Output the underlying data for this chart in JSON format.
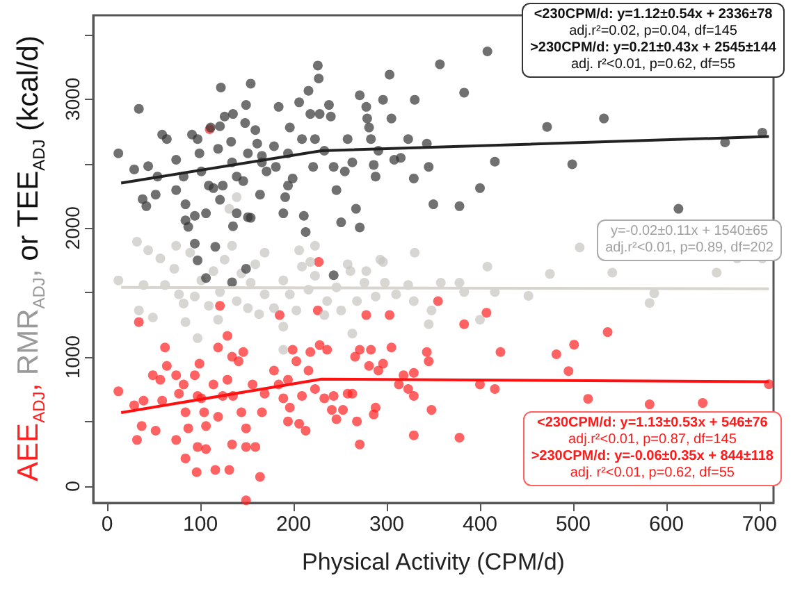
{
  "chart_data": {
    "type": "scatter",
    "xlabel": "Physical Activity (CPM/d)",
    "ylabel": "AEE$_{ADJ}$, RMR$_{ADJ}$, or TEE$_{ADJ}$ (kcal/d)",
    "xlim": [
      -15,
      715
    ],
    "xticks": [
      0,
      100,
      200,
      300,
      400,
      500,
      600,
      700
    ],
    "ylim": [
      -130,
      3650
    ],
    "yticks": [
      0,
      {
        "value": 500,
        "label": null
      },
      1000,
      {
        "value": 1500,
        "label": null
      },
      2000,
      {
        "value": 2500,
        "label": null
      },
      3000,
      {
        "value": 3500,
        "label": null
      }
    ],
    "grid": false,
    "series": [
      {
        "marker": "circle",
        "color": "#ff2020",
        "x": [
          12,
          29,
          34,
          39,
          37,
          32,
          49,
          52,
          57,
          59,
          62,
          64,
          74,
          77,
          82,
          84,
          74,
          84,
          87,
          94,
          97,
          99,
          101,
          97,
          96,
          106,
          104,
          106,
          114,
          116,
          119,
          119,
          121,
          124,
          129,
          129,
          131,
          134,
          135,
          134,
          141,
          146,
          144,
          149,
          149,
          149,
          159,
          156,
          164,
          166,
          169,
          179,
          184,
          189,
          194,
          194,
          196,
          185,
          199,
          203,
          206,
          209,
          213,
          216,
          218,
          223,
          226,
          227,
          228,
          236,
          233,
          241,
          243,
          246,
          253,
          258,
          263,
          266,
          271,
          271,
          268,
          278,
          281,
          283,
          286,
          288,
          291,
          296,
          303,
          305,
          313,
          318,
          323,
          329,
          329,
          329,
          343,
          345,
          348,
          355,
          378,
          383,
          400,
          407,
          416,
          422,
          110,
          482,
          495,
          501,
          516,
          537,
          582,
          639,
          710
        ],
        "values": [
          735,
          627,
          1272,
          663,
          466,
          358,
          860,
          430,
          825,
          663,
          1075,
          932,
          860,
          717,
          788,
          573,
          358,
          215,
          448,
          860,
          699,
          949,
          681,
          304,
          108,
          287,
          573,
          466,
          788,
          126,
          538,
          1075,
          1398,
          699,
          825,
          1165,
          126,
          1003,
          699,
          323,
          968,
          1040,
          573,
          448,
          304,
          -110,
          304,
          788,
          72,
          573,
          717,
          896,
          788,
          681,
          825,
          502,
          609,
          1326,
          1057,
          968,
          484,
          699,
          430,
          896,
          1040,
          753,
          1362,
          1738,
          1093,
          1057,
          681,
          591,
          699,
          519,
          591,
          717,
          717,
          1003,
          1057,
          323,
          502,
          1326,
          932,
          1057,
          556,
          609,
          896,
          949,
          1326,
          1075,
          788,
          860,
          753,
          878,
          699,
          394,
          1040,
          968,
          591,
          1434,
          376,
          1255,
          788,
          1344,
          753,
          1040,
          2767,
          1022,
          892,
          1097,
          677,
          1194,
          634,
          645,
          790
        ]
      },
      {
        "marker": "circle",
        "color": "#c8c4c0",
        "x": [
          12,
          32,
          39,
          34,
          49,
          44,
          57,
          62,
          74,
          72,
          77,
          82,
          84,
          97,
          94,
          101,
          109,
          114,
          119,
          121,
          126,
          134,
          139,
          144,
          151,
          154,
          159,
          163,
          169,
          179,
          189,
          189,
          189,
          196,
          203,
          209,
          218,
          216,
          223,
          233,
          236,
          246,
          251,
          261,
          263,
          268,
          276,
          278,
          288,
          296,
          298,
          310,
          323,
          329,
          330,
          345,
          348,
          358,
          378,
          383,
          400,
          408,
          416,
          89,
          139,
          131,
          169,
          206,
          223,
          258,
          293,
          452,
          475,
          507,
          542,
          582,
          587,
          654,
          676,
          703
        ],
        "values": [
          1595,
          1895,
          1559,
          1362,
          1308,
          1828,
          1765,
          1559,
          1863,
          1685,
          1487,
          1416,
          1272,
          1147,
          1470,
          1595,
          1398,
          1667,
          1290,
          1505,
          1756,
          1863,
          1434,
          1649,
          1380,
          1577,
          1720,
          1333,
          1487,
          1380,
          1595,
          1237,
          1057,
          1487,
          1362,
          1702,
          1738,
          1523,
          1631,
          1326,
          1434,
          1541,
          1362,
          1667,
          1183,
          1434,
          1577,
          1667,
          1470,
          1738,
          1577,
          1487,
          1559,
          1434,
          1810,
          1255,
          1362,
          1577,
          1577,
          1505,
          1290,
          1702,
          1505,
          1810,
          2240,
          2150,
          1810,
          1828,
          1863,
          1720,
          1756,
          1475,
          1645,
          1850,
          1655,
          1420,
          1495,
          1655,
          1765,
          1765
        ]
      },
      {
        "marker": "circle",
        "color": "#333333",
        "x": [
          12,
          34,
          29,
          44,
          38,
          42,
          52,
          59,
          64,
          54,
          74,
          74,
          82,
          84,
          84,
          87,
          94,
          91,
          97,
          99,
          101,
          106,
          94,
          109,
          111,
          119,
          121,
          122,
          126,
          133,
          134,
          124,
          114,
          121,
          139,
          135,
          148,
          149,
          154,
          159,
          151,
          146,
          139,
          135,
          151,
          154,
          161,
          166,
          171,
          164,
          166,
          179,
          184,
          181,
          194,
          196,
          199,
          194,
          191,
          189,
          206,
          209,
          211,
          213,
          216,
          218,
          223,
          221,
          226,
          227,
          228,
          233,
          238,
          240,
          243,
          246,
          251,
          255,
          258,
          263,
          267,
          271,
          271,
          278,
          279,
          281,
          283,
          286,
          288,
          291,
          296,
          303,
          305,
          308,
          315,
          323,
          329,
          330,
          343,
          345,
          350,
          357,
          378,
          383,
          400,
          408,
          416,
          472,
          499,
          533,
          613,
          663,
          703,
          116,
          97,
          149,
          106,
          134,
          243
        ],
        "values": [
          2580,
          2925,
          2455,
          2480,
          2225,
          2170,
          2260,
          2725,
          2690,
          2400,
          2530,
          2295,
          2400,
          2185,
          2060,
          2010,
          2095,
          2725,
          2690,
          2580,
          2440,
          2115,
          1880,
          2330,
          2780,
          2615,
          2790,
          3090,
          2865,
          2670,
          2510,
          2330,
          2310,
          2220,
          2400,
          2885,
          2815,
          2955,
          3120,
          2760,
          2580,
          2365,
          2115,
          2015,
          2085,
          2080,
          2655,
          2510,
          2440,
          2260,
          2560,
          2635,
          2940,
          2475,
          2580,
          2780,
          2385,
          2330,
          2240,
          2115,
          2975,
          2690,
          2095,
          1970,
          3065,
          2885,
          2690,
          2475,
          3260,
          3160,
          2885,
          2600,
          2955,
          2865,
          2475,
          2295,
          2045,
          2440,
          2690,
          2510,
          2150,
          2005,
          3030,
          2940,
          2850,
          2780,
          2690,
          2490,
          2400,
          2600,
          2995,
          3190,
          2850,
          2530,
          2545,
          2690,
          2385,
          2995,
          2655,
          2475,
          2185,
          3270,
          2170,
          3050,
          2310,
          3370,
          2515,
          2785,
          2495,
          2850,
          2150,
          2665,
          2740,
          1855,
          1750,
          1685,
          1613,
          1580,
          1635
        ]
      },
      {
        "type": "line",
        "color": "#222222",
        "x": [
          15,
          230,
          710
        ],
        "marker": "none",
        "values": [
          2350,
          2600,
          2710
        ]
      },
      {
        "type": "line",
        "color": "#d8d4d0",
        "x": [
          15,
          710
        ],
        "marker": "none",
        "values": [
          1540,
          1530
        ]
      },
      {
        "type": "line",
        "color": "#ff1010",
        "x": [
          15,
          230,
          710
        ],
        "marker": "none",
        "values": [
          570,
          830,
          810
        ]
      }
    ],
    "annotations": [
      "<230CPM/d:  y=1.12±0.54x + 2336±78",
      "adj.r²=0.02, p=0.04, df=145",
      ">230CPM/d: y=0.21±0.43x + 2545±144",
      "adj. r²<0.01, p=0.62, df=55",
      "y=-0.02±0.11x + 1540±65",
      "adj.r²<0.01, p=0.89, df=202",
      "<230CPM/d:   y=1.13±0.53x + 546±76",
      "adj.r²<0.01, p=0.87, df=145",
      ">230CPM/d: y=-0.06±0.35x + 844±118",
      "adj. r²<0.01, p=0.62, df=55"
    ]
  }
}
